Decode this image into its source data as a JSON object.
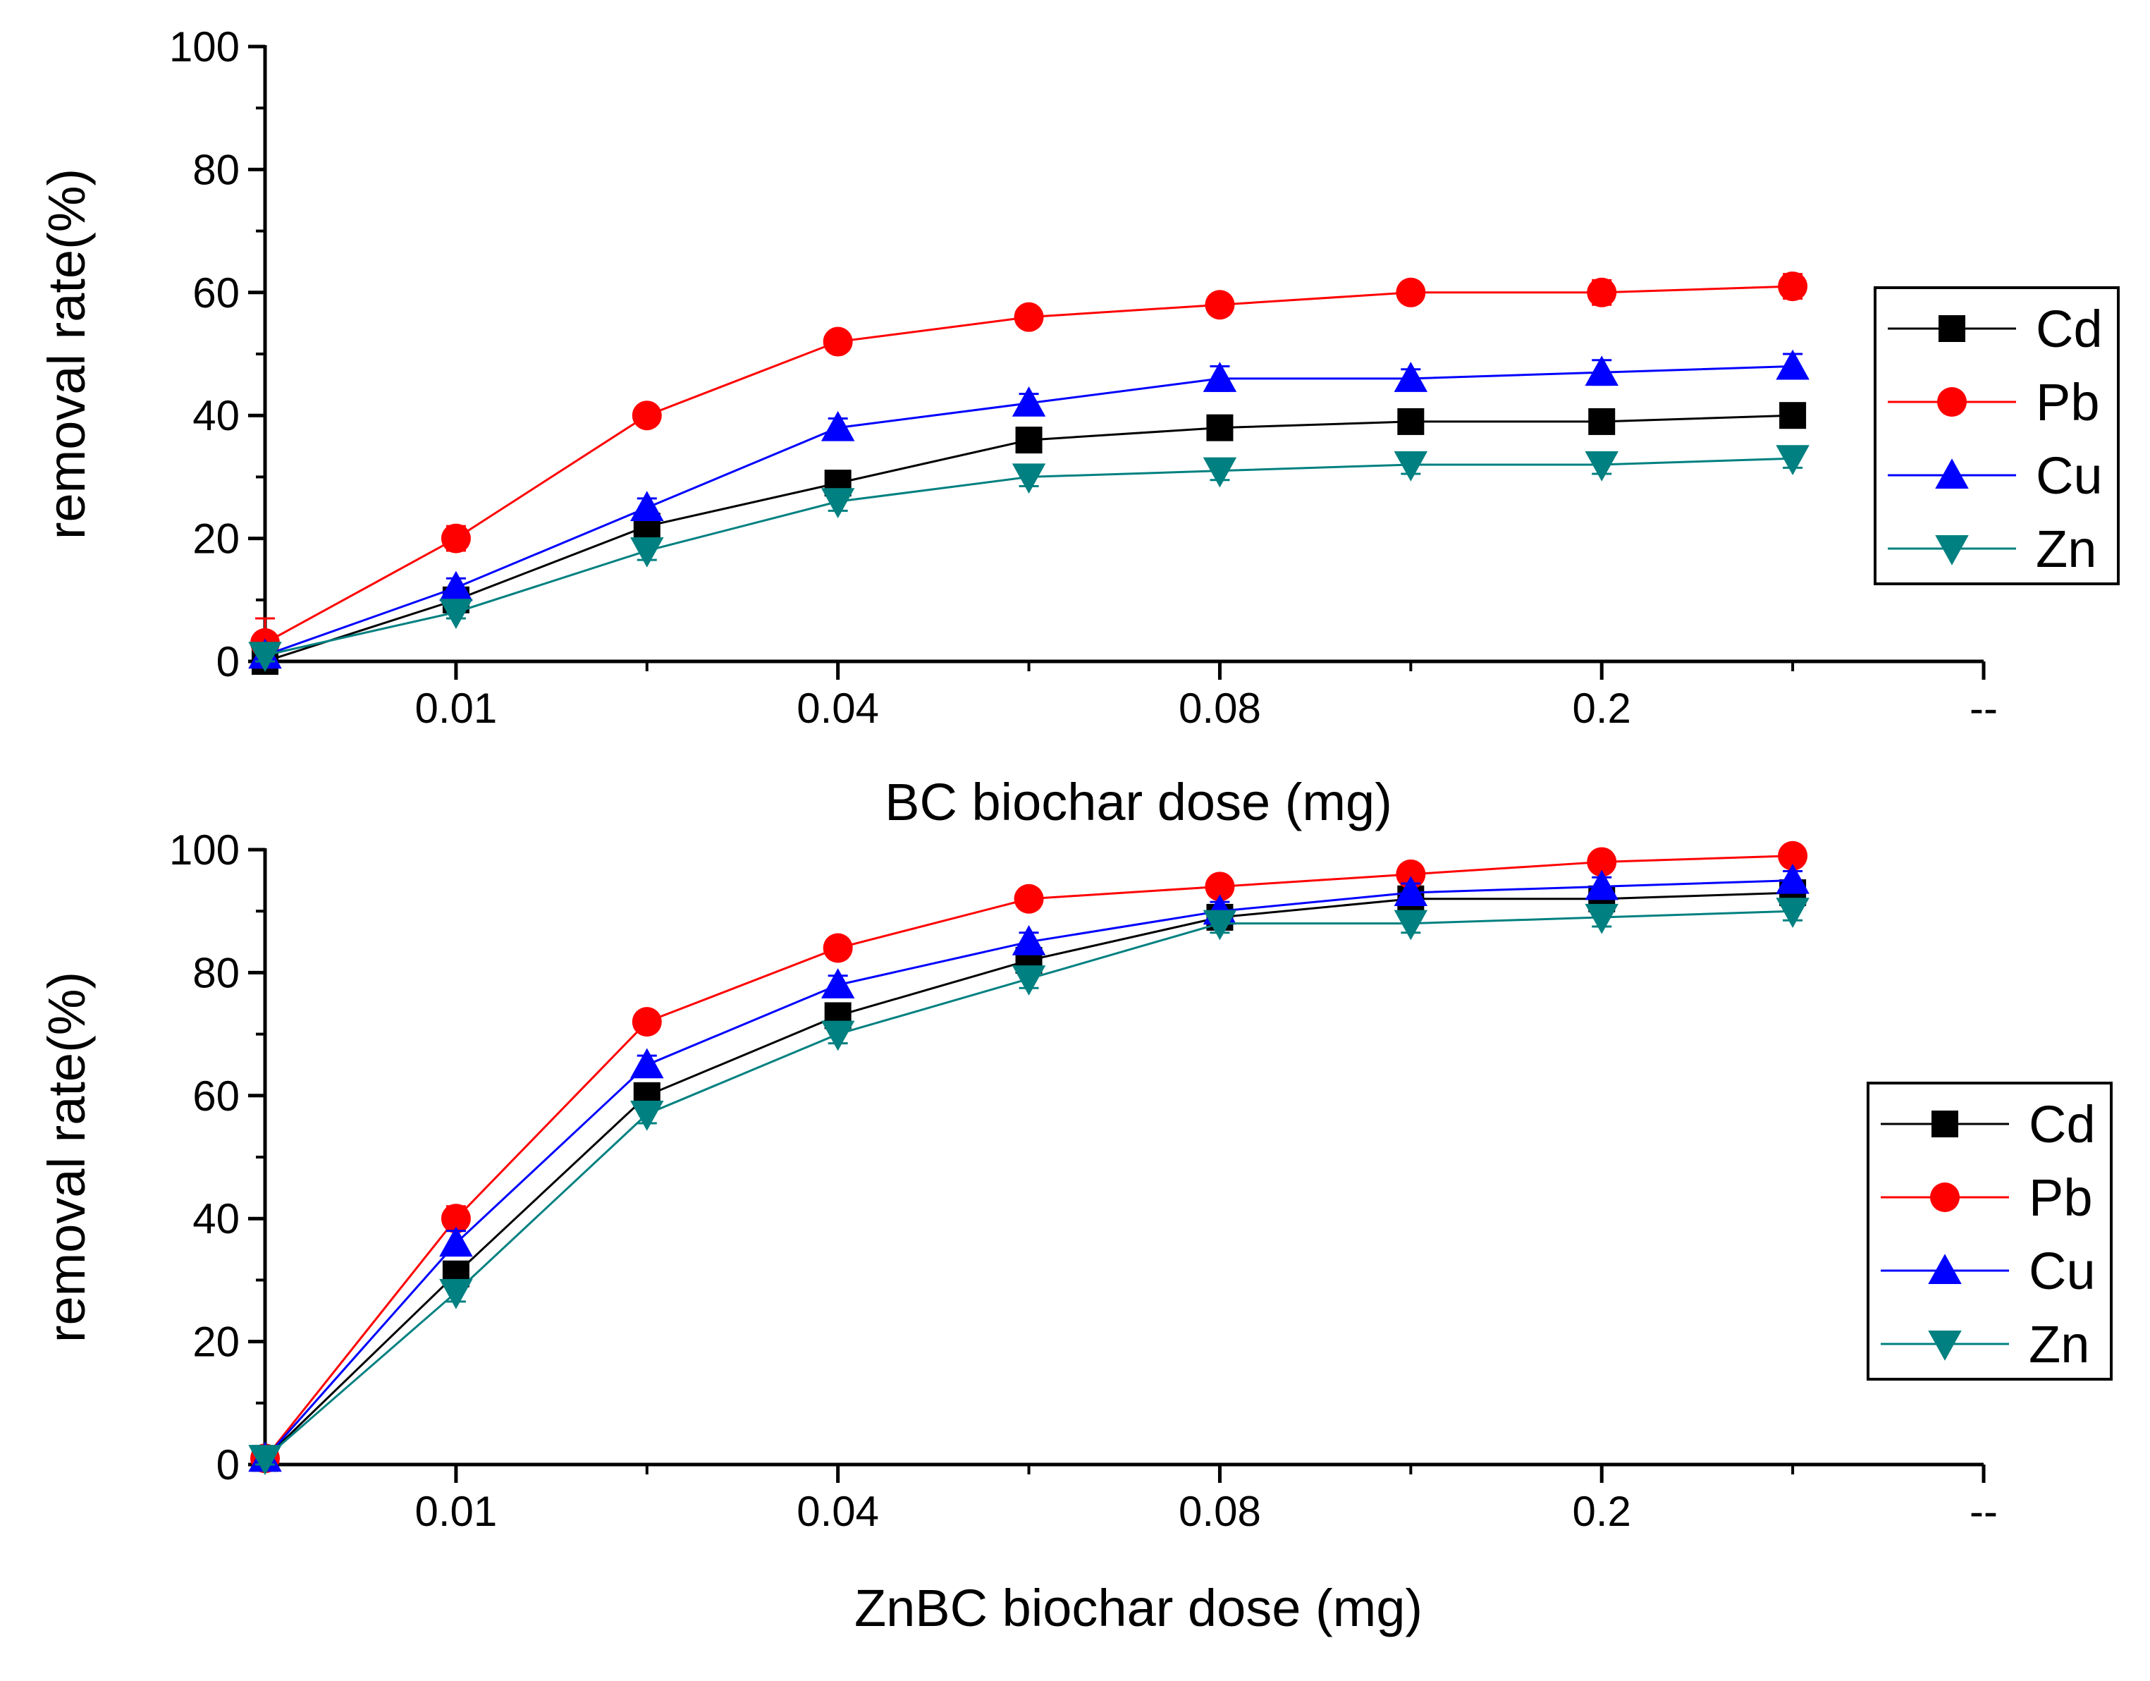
{
  "chart_data": [
    {
      "type": "line",
      "title": "",
      "xlabel": "BC biochar dose (mg)",
      "ylabel": "removal rate(%)",
      "x": [
        0,
        1,
        2,
        3,
        4,
        5,
        6,
        7,
        8
      ],
      "x_ticks": [
        {
          "pos": 1,
          "label": "0.01"
        },
        {
          "pos": 3,
          "label": "0.04"
        },
        {
          "pos": 5,
          "label": "0.08"
        },
        {
          "pos": 7,
          "label": "0.2"
        },
        {
          "pos": 9,
          "label": "--"
        }
      ],
      "xlim": [
        0,
        9
      ],
      "ylim": [
        0,
        100
      ],
      "y_ticks": [
        0,
        20,
        40,
        60,
        80,
        100
      ],
      "legend_position": "right",
      "series": [
        {
          "name": "Cd",
          "color": "#000000",
          "marker": "square",
          "values": [
            0,
            10,
            22,
            29,
            36,
            38,
            39,
            39,
            40
          ],
          "errors": [
            1,
            1,
            1.5,
            1.5,
            1.5,
            1.5,
            1.5,
            1.5,
            1.5
          ]
        },
        {
          "name": "Pb",
          "color": "#ff0000",
          "marker": "circle",
          "values": [
            3,
            20,
            40,
            52,
            56,
            58,
            60,
            60,
            61
          ],
          "errors": [
            4,
            2,
            1.5,
            1.5,
            1.5,
            1.5,
            1.5,
            2,
            2
          ]
        },
        {
          "name": "Cu",
          "color": "#0000ff",
          "marker": "triangle-up",
          "values": [
            1,
            12,
            25,
            38,
            42,
            46,
            46,
            47,
            48
          ],
          "errors": [
            1,
            1.5,
            1.5,
            1.5,
            1.5,
            2,
            1.5,
            2,
            2
          ]
        },
        {
          "name": "Zn",
          "color": "#008080",
          "marker": "triangle-down",
          "values": [
            1,
            8,
            18,
            26,
            30,
            31,
            32,
            32,
            33
          ],
          "errors": [
            1,
            1,
            1.5,
            1.5,
            1.5,
            1.5,
            1.5,
            1.5,
            1.5
          ]
        }
      ]
    },
    {
      "type": "line",
      "title": "",
      "xlabel": "ZnBC biochar dose (mg)",
      "ylabel": "removal rate(%)",
      "x": [
        0,
        1,
        2,
        3,
        4,
        5,
        6,
        7,
        8
      ],
      "x_ticks": [
        {
          "pos": 1,
          "label": "0.01"
        },
        {
          "pos": 3,
          "label": "0.04"
        },
        {
          "pos": 5,
          "label": "0.08"
        },
        {
          "pos": 7,
          "label": "0.2"
        },
        {
          "pos": 9,
          "label": "--"
        }
      ],
      "xlim": [
        0,
        9
      ],
      "ylim": [
        0,
        100
      ],
      "y_ticks": [
        0,
        20,
        40,
        60,
        80,
        100
      ],
      "legend_position": "right",
      "series": [
        {
          "name": "Cd",
          "color": "#000000",
          "marker": "square",
          "values": [
            1,
            31,
            60,
            73,
            82,
            89,
            92,
            92,
            93
          ],
          "errors": [
            1,
            1.5,
            1.5,
            1.5,
            1.5,
            1.5,
            1.5,
            1.5,
            1.5
          ]
        },
        {
          "name": "Pb",
          "color": "#ff0000",
          "marker": "circle",
          "values": [
            1,
            40,
            72,
            84,
            92,
            94,
            96,
            98,
            99
          ],
          "errors": [
            1,
            2,
            1.5,
            1.5,
            1.5,
            1.5,
            1.5,
            1.5,
            1.5
          ]
        },
        {
          "name": "Cu",
          "color": "#0000ff",
          "marker": "triangle-up",
          "values": [
            1,
            36,
            65,
            78,
            85,
            90,
            93,
            94,
            95
          ],
          "errors": [
            1,
            2,
            1.5,
            1.5,
            1.5,
            1.5,
            1.5,
            1.5,
            1.5
          ]
        },
        {
          "name": "Zn",
          "color": "#008080",
          "marker": "triangle-down",
          "values": [
            1,
            28,
            57,
            70,
            79,
            88,
            88,
            89,
            90
          ],
          "errors": [
            1,
            1.5,
            1.5,
            1.5,
            1.5,
            1.5,
            1.5,
            1.5,
            1.5
          ]
        }
      ]
    }
  ]
}
